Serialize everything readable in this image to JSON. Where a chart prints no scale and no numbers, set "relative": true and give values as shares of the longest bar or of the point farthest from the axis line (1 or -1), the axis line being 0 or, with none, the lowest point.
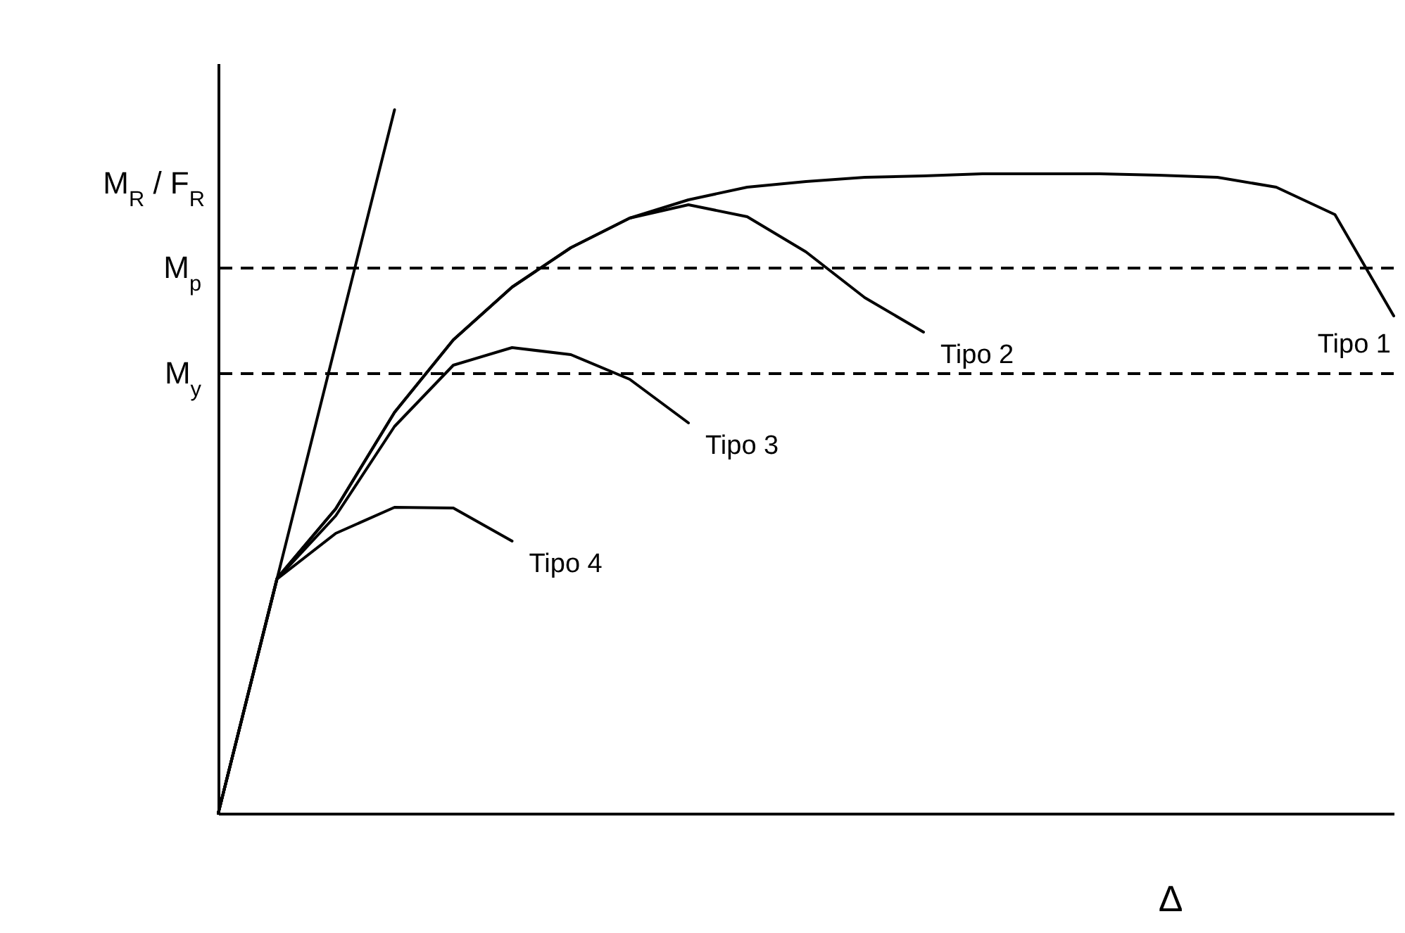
{
  "chart_data": {
    "type": "line",
    "relative": true,
    "xlabel": "Δ",
    "ylabel": "M$_{R}$ / F$_{R}$",
    "legend": false,
    "marker": "none",
    "line_style": "solid",
    "categories": [
      null,
      null,
      null,
      null,
      null,
      null,
      null,
      null,
      null,
      null,
      null,
      null,
      null,
      null,
      null,
      null,
      null,
      null,
      null,
      null,
      null
    ],
    "series": [
      {
        "color": "#000000",
        "values": [
          0,
          0.333,
          0.667,
          1.0,
          null,
          null,
          null,
          null,
          null,
          null,
          null,
          null,
          null,
          null,
          null,
          null,
          null,
          null,
          null,
          null,
          null
        ]
      },
      {
        "name": "Tipo 1",
        "color": "#000000",
        "values": [
          0,
          0.334,
          0.433,
          0.57,
          0.673,
          0.748,
          0.804,
          0.846,
          0.872,
          0.89,
          0.898,
          0.904,
          0.906,
          0.909,
          0.909,
          0.909,
          0.907,
          0.904,
          0.89,
          0.851,
          0.707
        ]
      },
      {
        "name": "Tipo 2",
        "color": "#000000",
        "values": [
          0,
          0.334,
          0.433,
          0.57,
          0.673,
          0.748,
          0.804,
          0.846,
          0.865,
          0.848,
          0.798,
          0.733,
          0.684,
          null,
          null,
          null,
          null,
          null,
          null,
          null,
          null
        ]
      },
      {
        "name": "Tipo 3",
        "color": "#000000",
        "values": [
          0,
          0.333,
          0.423,
          0.55,
          0.637,
          0.662,
          0.652,
          0.617,
          0.555,
          null,
          null,
          null,
          null,
          null,
          null,
          null,
          null,
          null,
          null,
          null,
          null
        ]
      },
      {
        "name": "Tipo 4",
        "color": "#000000",
        "values": [
          0,
          0.333,
          0.398,
          0.435,
          0.434,
          0.387,
          null,
          null,
          null,
          null,
          null,
          null,
          null,
          null,
          null,
          null,
          null,
          null,
          null,
          null,
          null
        ]
      }
    ],
    "ref_lines": [
      {
        "axis": "y",
        "value": 0.775,
        "label": "M$_{p}$",
        "line_style": "dashed",
        "color": "#000000"
      },
      {
        "axis": "y",
        "value": 0.625,
        "label": "M$_{y}$",
        "line_style": "dashed",
        "color": "#000000"
      }
    ]
  }
}
